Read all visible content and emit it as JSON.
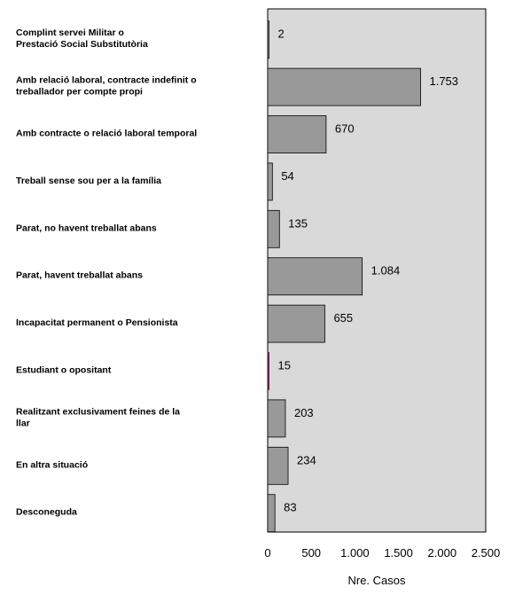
{
  "chart_data": {
    "type": "bar",
    "orientation": "horizontal",
    "categories": [
      "Complint servei Militar o Prestació Social Substitutòria",
      "Amb relació laboral, contracte indefinit o treballador per compte propi",
      "Amb contracte o relació laboral temporal",
      "Treball sense sou per a la família",
      "Parat, no havent treballat abans",
      "Parat, havent treballat abans",
      "Incapacitat permanent o Pensionista",
      "Estudiant o opositant",
      "Realitzant exclusivament feines de la llar",
      "En altra situació",
      "Desconeguda"
    ],
    "category_lines": [
      [
        "Complint servei Militar o",
        "Prestació Social Substitutòria"
      ],
      [
        "Amb relació laboral, contracte indefinit o",
        "treballador per compte propi"
      ],
      [
        "Amb contracte o relació laboral temporal"
      ],
      [
        "Treball sense sou per a la família"
      ],
      [
        "Parat, no havent treballat abans"
      ],
      [
        "Parat, havent treballat abans"
      ],
      [
        "Incapacitat permanent o Pensionista"
      ],
      [
        "Estudiant o opositant"
      ],
      [
        "Realitzant exclusivament feines de la",
        "llar"
      ],
      [
        "En altra situació"
      ],
      [
        "Desconeguda"
      ]
    ],
    "values": [
      2,
      1753,
      670,
      54,
      135,
      1084,
      655,
      15,
      203,
      234,
      83
    ],
    "value_labels": [
      "2",
      "1.753",
      "670",
      "54",
      "135",
      "1.084",
      "655",
      "15",
      "203",
      "234",
      "83"
    ],
    "xlabel": "Nre. Casos",
    "ylabel": "",
    "xlim": [
      0,
      2500
    ],
    "xticks": [
      0,
      500,
      1000,
      1500,
      2000,
      2500
    ],
    "xtick_labels": [
      "0",
      "500",
      "1.000",
      "1.500",
      "2.000",
      "2.500"
    ],
    "grid": false,
    "colors": {
      "plot_background": "#d9d9d9",
      "bar_fill": "#999999",
      "bar_stroke": "#000000",
      "highlight_bar_fill": "#5a1a4a"
    },
    "highlight_index": 7
  }
}
